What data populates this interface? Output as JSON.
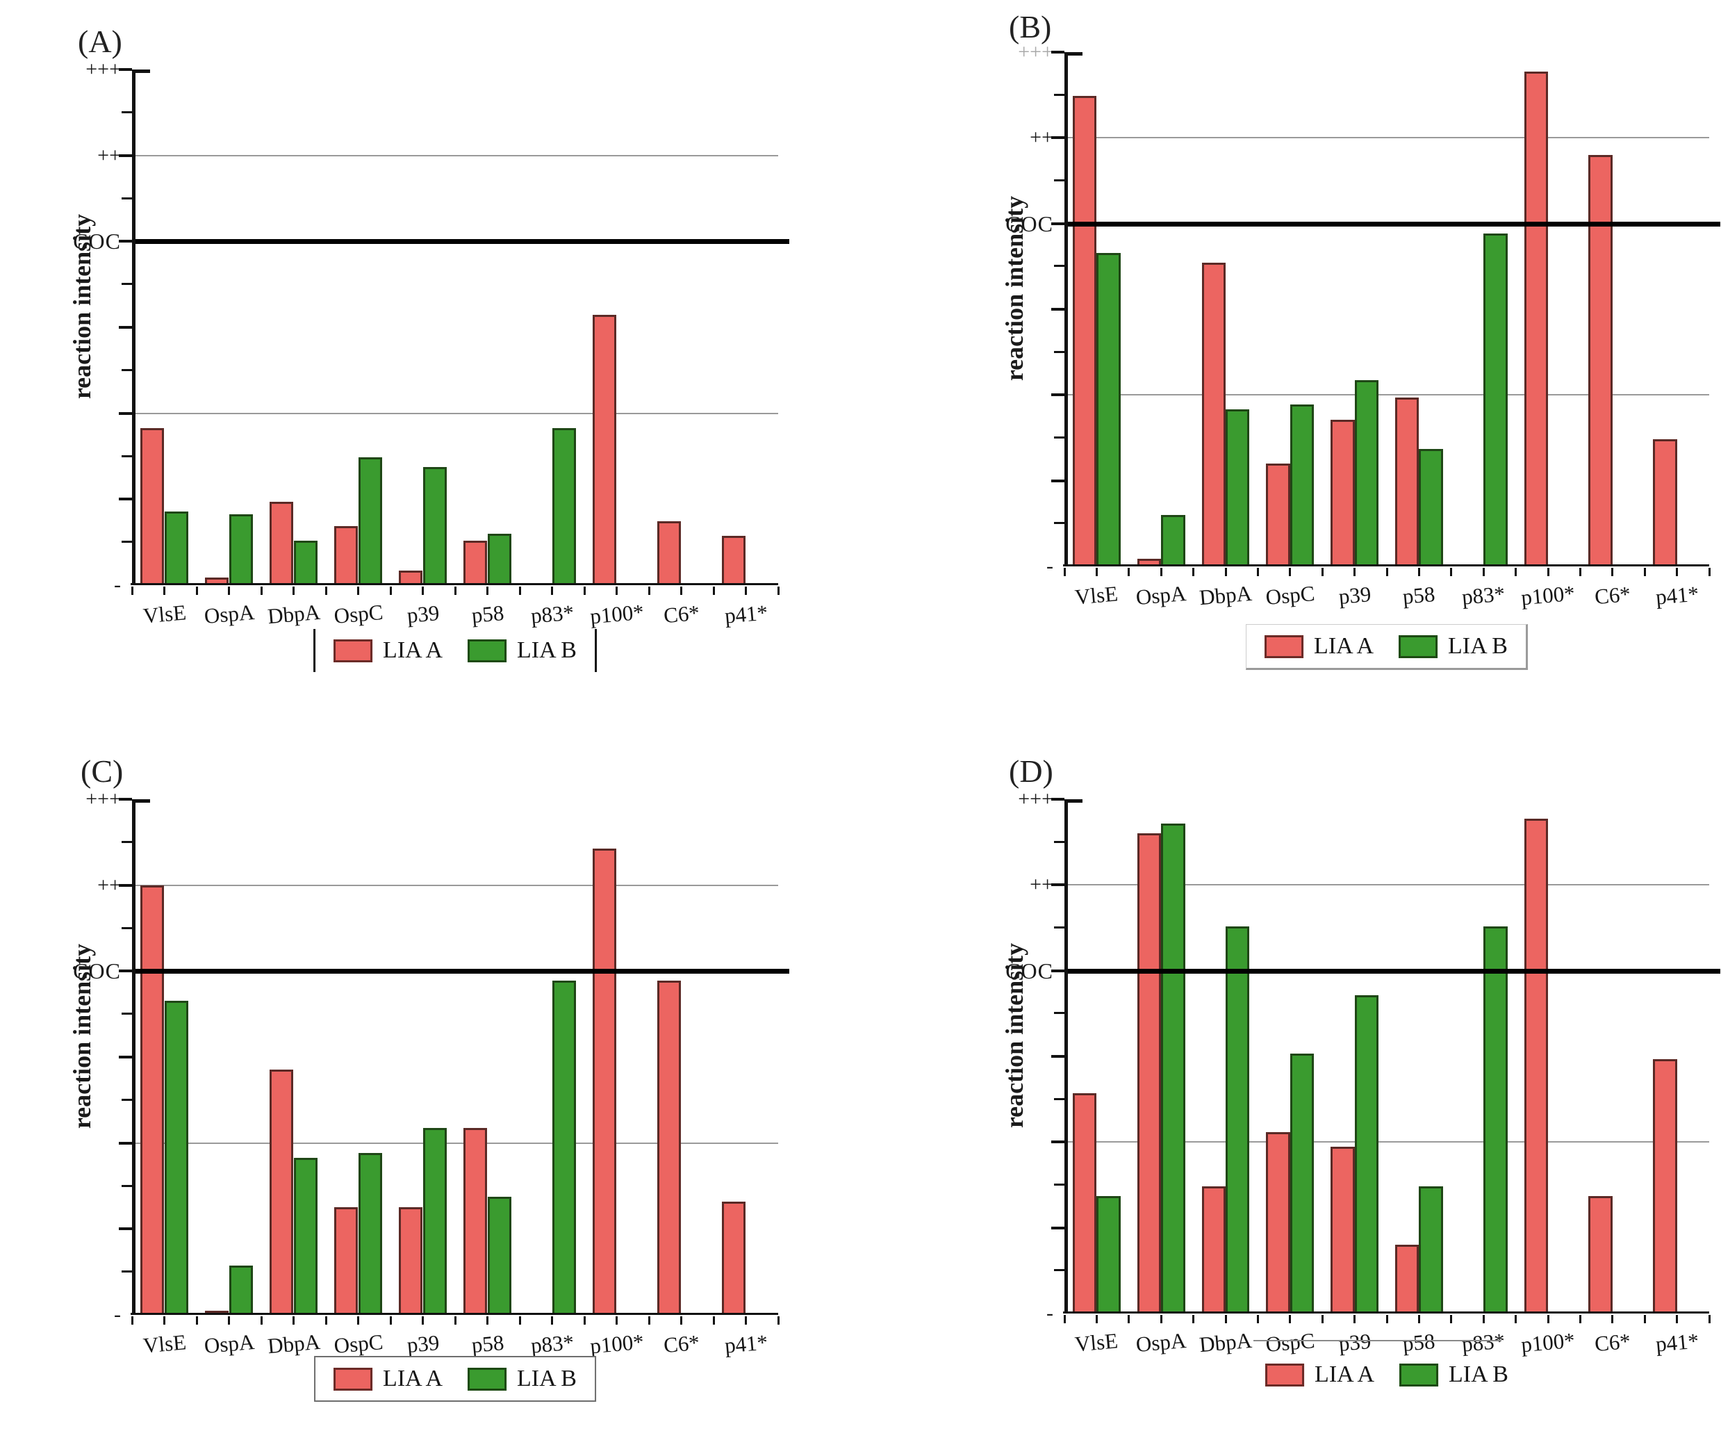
{
  "figure": {
    "y_axis_title": "reaction intensity",
    "y_tick_labels": {
      "top": "+++",
      "upper": "++",
      "cutoff": "COC",
      "bottom": "-"
    },
    "legend_labels": {
      "lia_a": "LIA A",
      "lia_b": "LIA B"
    },
    "colors": {
      "lia_a_fill": "#ec6561",
      "lia_a_edge": "#5b2a26",
      "lia_b_fill": "#3a9b2f",
      "lia_b_edge": "#1f4716",
      "coc_line": "#000000",
      "gridline": "#9a9a9a"
    }
  },
  "chart_data": [
    {
      "type": "bar",
      "panel": "(A)",
      "title": "",
      "ylabel": "reaction intensity",
      "xlabel": "",
      "categories": [
        "VlsE",
        "OspA",
        "DbpA",
        "OspC",
        "p39",
        "p58",
        "p83*",
        "p100*",
        "C6*",
        "p41*"
      ],
      "series": [
        {
          "name": "LIA A",
          "values": [
            32,
            1.5,
            17,
            12,
            3,
            9,
            null,
            55,
            13,
            10
          ]
        },
        {
          "name": "LIA B",
          "values": [
            15,
            14.5,
            9,
            26,
            24,
            10.5,
            32,
            null,
            null,
            null
          ]
        }
      ],
      "ylim": [
        0,
        105
      ],
      "y_levels": {
        "minus": 0,
        "plus_gridline": 35,
        "coc_cutoff": 70,
        "plus_plus_gridline": 87.5,
        "plus_plus_plus_top": 105
      },
      "grid": "horizontal-at-plus-and-plusplus",
      "legend_position": "bottom-center"
    },
    {
      "type": "bar",
      "panel": "(B)",
      "title": "",
      "ylabel": "reaction intensity",
      "xlabel": "",
      "categories": [
        "VlsE",
        "OspA",
        "DbpA",
        "OspC",
        "p39",
        "p58",
        "p83*",
        "p100*",
        "C6*",
        "p41*"
      ],
      "series": [
        {
          "name": "LIA A",
          "values": [
            96,
            1.5,
            62,
            21,
            30,
            34.5,
            null,
            101,
            84,
            26
          ]
        },
        {
          "name": "LIA B",
          "values": [
            64,
            10.5,
            32,
            33,
            38,
            24,
            68,
            null,
            null,
            null
          ]
        }
      ],
      "ylim": [
        0,
        105
      ],
      "y_levels": {
        "minus": 0,
        "plus_gridline": 35,
        "coc_cutoff": 70,
        "plus_plus_gridline": 87.5,
        "plus_plus_plus_top": 105
      },
      "grid": "horizontal-at-plus-and-plusplus",
      "legend_position": "bottom-center"
    },
    {
      "type": "bar",
      "panel": "(C)",
      "title": "",
      "ylabel": "reaction intensity",
      "xlabel": "",
      "categories": [
        "VlsE",
        "OspA",
        "DbpA",
        "OspC",
        "p39",
        "p58",
        "p83*",
        "p100*",
        "C6*",
        "p41*"
      ],
      "series": [
        {
          "name": "LIA A",
          "values": [
            87.5,
            0.7,
            50,
            22,
            22,
            38,
            null,
            95,
            68,
            23
          ]
        },
        {
          "name": "LIA B",
          "values": [
            64,
            10,
            32,
            33,
            38,
            24,
            68,
            null,
            null,
            null
          ]
        }
      ],
      "ylim": [
        0,
        105
      ],
      "y_levels": {
        "minus": 0,
        "plus_gridline": 35,
        "coc_cutoff": 70,
        "plus_plus_gridline": 87.5,
        "plus_plus_plus_top": 105
      },
      "grid": "horizontal-at-plus-and-plusplus",
      "legend_position": "bottom-center"
    },
    {
      "type": "bar",
      "panel": "(D)",
      "title": "",
      "ylabel": "reaction intensity",
      "xlabel": "",
      "categories": [
        "VlsE",
        "OspA",
        "DbpA",
        "OspC",
        "p39",
        "p58",
        "p83*",
        "p100*",
        "C6*",
        "p41*"
      ],
      "series": [
        {
          "name": "LIA A",
          "values": [
            45,
            98,
            26,
            37,
            34,
            14,
            null,
            101,
            24,
            52
          ]
        },
        {
          "name": "LIA B",
          "values": [
            24,
            100,
            79,
            53,
            65,
            26,
            79,
            null,
            null,
            null
          ]
        }
      ],
      "ylim": [
        0,
        105
      ],
      "y_levels": {
        "minus": 0,
        "plus_gridline": 35,
        "coc_cutoff": 70,
        "plus_plus_gridline": 87.5,
        "plus_plus_plus_top": 105
      },
      "grid": "horizontal-at-plus-and-plusplus",
      "legend_position": "bottom-center"
    }
  ]
}
